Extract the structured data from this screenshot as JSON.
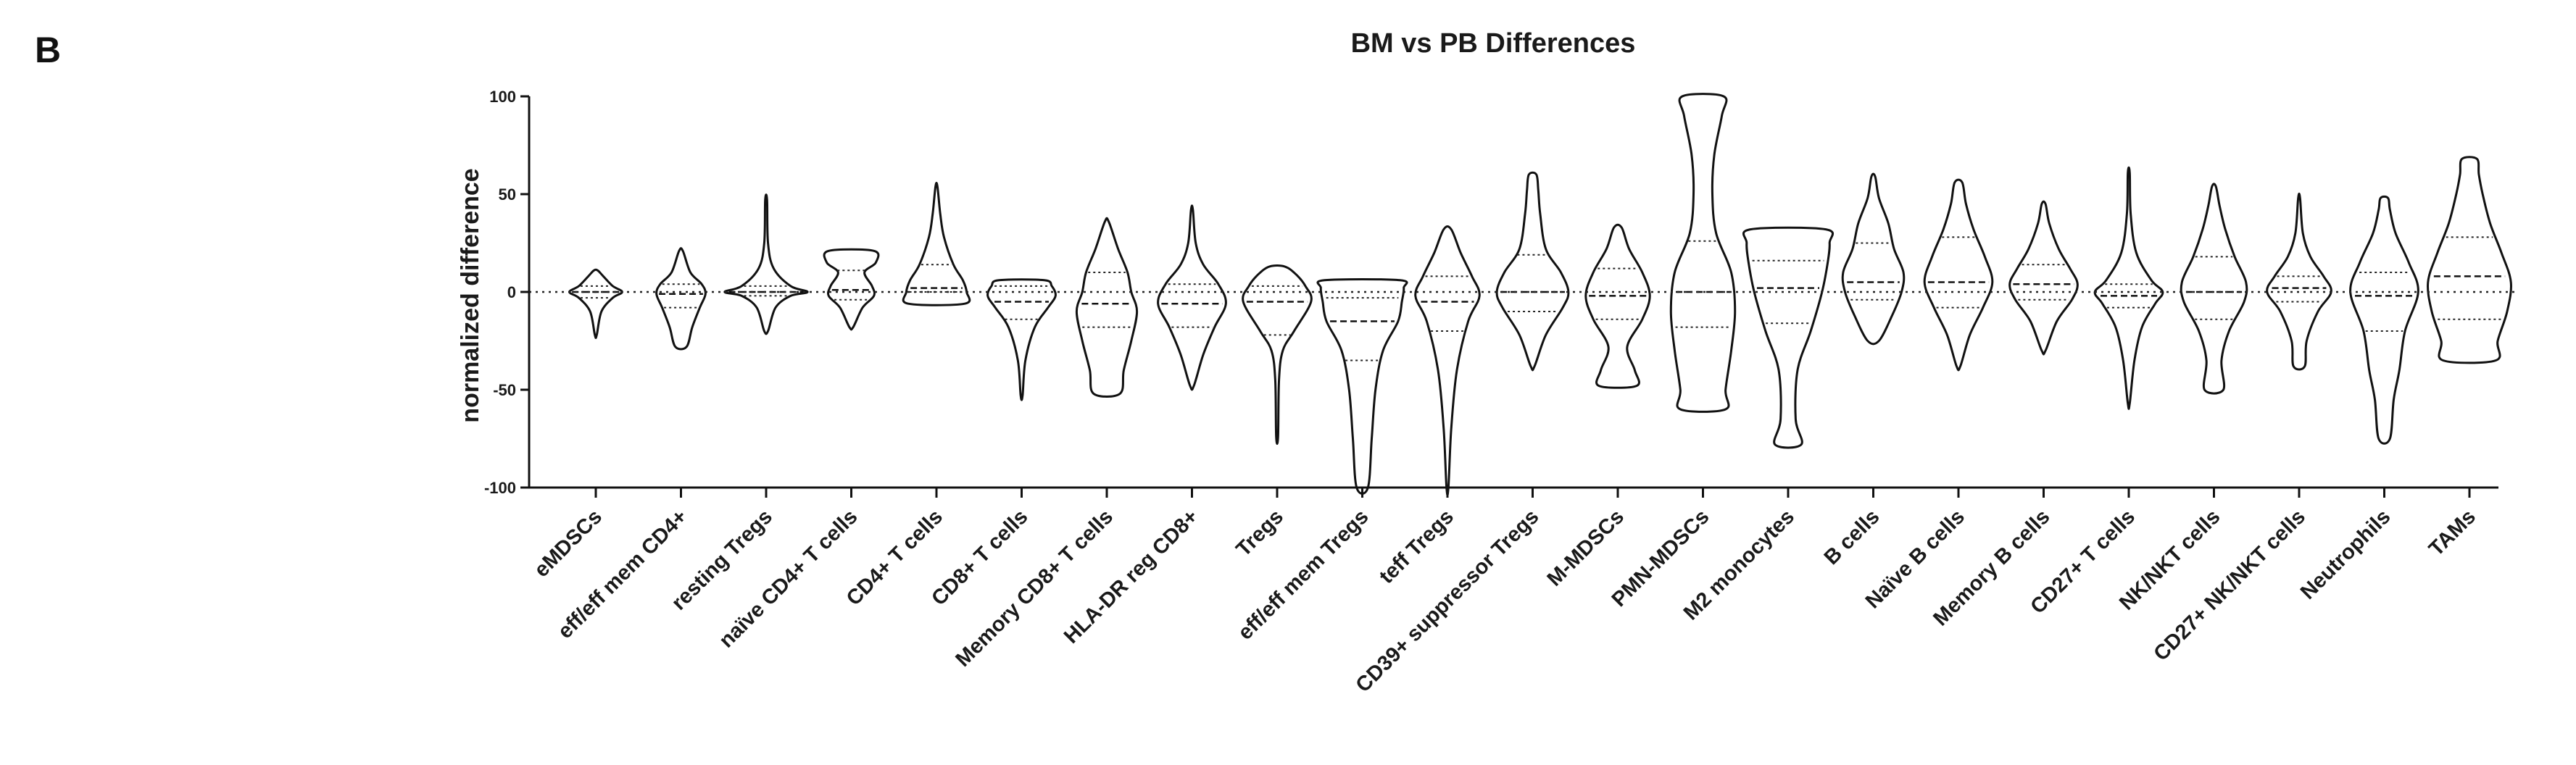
{
  "panel_label": "B",
  "chart_data": {
    "type": "violin",
    "title": "BM vs PB Differences",
    "xlabel": "",
    "ylabel": "normalized difference",
    "ylim": [
      -100,
      100
    ],
    "yticks": [
      100,
      50,
      0,
      -50,
      -100
    ],
    "reference_line": 0,
    "categories": [
      "eMDSCs",
      "eff/eff mem CD4+",
      "resting Tregs",
      "naïve CD4+ T cells",
      "CD4+ T cells",
      "CD8+ T cells",
      "Memory CD8+ T cells",
      "HLA-DR reg CD8+",
      "Tregs",
      "eff/eff mem Tregs",
      "teff Tregs",
      "CD39+ suppressor Tregs",
      "M-MDSCs",
      "PMN-MDSCs",
      "M2 monocytes",
      "B cells",
      "Naïve B cells",
      "Memory B cells",
      "CD27+ T cells",
      "NK/NKT cells",
      "CD27+ NK/NKT cells",
      "Neutrophils",
      "TAMs"
    ],
    "violins": [
      {
        "min": -22,
        "max": 11,
        "q1": -3,
        "median": 0,
        "q3": 3,
        "profile": [
          [
            -22,
            0.5
          ],
          [
            -10,
            3
          ],
          [
            -3,
            9
          ],
          [
            0,
            14
          ],
          [
            3,
            9
          ],
          [
            8,
            4
          ],
          [
            11,
            1
          ]
        ]
      },
      {
        "min": -28,
        "max": 21,
        "q1": -8,
        "median": -1,
        "q3": 4,
        "profile": [
          [
            -28,
            3
          ],
          [
            -18,
            6
          ],
          [
            -8,
            10
          ],
          [
            -1,
            13
          ],
          [
            4,
            11
          ],
          [
            10,
            5
          ],
          [
            21,
            1
          ]
        ]
      },
      {
        "min": -20,
        "max": 47,
        "q1": -2,
        "median": 0,
        "q3": 3,
        "profile": [
          [
            -20,
            1
          ],
          [
            -8,
            5
          ],
          [
            -2,
            13
          ],
          [
            0,
            22
          ],
          [
            3,
            13
          ],
          [
            12,
            4
          ],
          [
            25,
            1
          ],
          [
            47,
            0.5
          ]
        ]
      },
      {
        "min": -18,
        "max": 21,
        "q1": -4,
        "median": 1,
        "q3": 11,
        "profile": [
          [
            -18,
            1
          ],
          [
            -8,
            6
          ],
          [
            -2,
            12
          ],
          [
            3,
            11
          ],
          [
            10,
            7
          ],
          [
            15,
            13
          ],
          [
            21,
            12
          ]
        ]
      },
      {
        "min": -6,
        "max": 54,
        "q1": 0,
        "median": 2,
        "q3": 14,
        "profile": [
          [
            -6,
            15
          ],
          [
            0,
            16
          ],
          [
            6,
            14
          ],
          [
            14,
            9
          ],
          [
            28,
            4
          ],
          [
            40,
            2
          ],
          [
            54,
            0.5
          ]
        ]
      },
      {
        "min": -53,
        "max": 6,
        "q1": -14,
        "median": -5,
        "q3": 3,
        "profile": [
          [
            -53,
            0.5
          ],
          [
            -35,
            2
          ],
          [
            -18,
            7
          ],
          [
            -8,
            14
          ],
          [
            -2,
            18
          ],
          [
            3,
            16
          ],
          [
            6,
            12
          ]
        ]
      },
      {
        "min": -52,
        "max": 36,
        "q1": -18,
        "median": -6,
        "q3": 10,
        "profile": [
          [
            -52,
            7
          ],
          [
            -40,
            9
          ],
          [
            -25,
            13
          ],
          [
            -10,
            16
          ],
          [
            0,
            13
          ],
          [
            10,
            11
          ],
          [
            22,
            6
          ],
          [
            36,
            1
          ]
        ]
      },
      {
        "min": -48,
        "max": 42,
        "q1": -18,
        "median": -6,
        "q3": 4,
        "profile": [
          [
            -48,
            1
          ],
          [
            -32,
            6
          ],
          [
            -18,
            12
          ],
          [
            -6,
            18
          ],
          [
            4,
            14
          ],
          [
            14,
            6
          ],
          [
            25,
            2
          ],
          [
            42,
            0.5
          ]
        ]
      },
      {
        "min": -74,
        "max": 13,
        "q1": -22,
        "median": -5,
        "q3": 3,
        "profile": [
          [
            -74,
            0.5
          ],
          [
            -45,
            1
          ],
          [
            -30,
            3
          ],
          [
            -20,
            9
          ],
          [
            -5,
            18
          ],
          [
            3,
            15
          ],
          [
            9,
            10
          ],
          [
            13,
            4
          ]
        ]
      },
      {
        "min": -100,
        "max": 6,
        "q1": -35,
        "median": -15,
        "q3": -3,
        "profile": [
          [
            -100,
            3
          ],
          [
            -75,
            5
          ],
          [
            -50,
            7
          ],
          [
            -30,
            11
          ],
          [
            -15,
            19
          ],
          [
            -5,
            21
          ],
          [
            2,
            22
          ],
          [
            6,
            20
          ]
        ]
      },
      {
        "min": -100,
        "max": 32,
        "q1": -20,
        "median": -5,
        "q3": 8,
        "profile": [
          [
            -100,
            0.5
          ],
          [
            -70,
            2
          ],
          [
            -40,
            5
          ],
          [
            -15,
            11
          ],
          [
            -2,
            17
          ],
          [
            8,
            13
          ],
          [
            20,
            7
          ],
          [
            32,
            2
          ]
        ]
      },
      {
        "min": -38,
        "max": 60,
        "q1": -10,
        "median": 0,
        "q3": 19,
        "profile": [
          [
            -38,
            1
          ],
          [
            -22,
            7
          ],
          [
            -8,
            16
          ],
          [
            0,
            19
          ],
          [
            10,
            15
          ],
          [
            22,
            7
          ],
          [
            40,
            4
          ],
          [
            52,
            3
          ],
          [
            60,
            2
          ]
        ]
      },
      {
        "min": -48,
        "max": 33,
        "q1": -14,
        "median": -2,
        "q3": 12,
        "profile": [
          [
            -48,
            10
          ],
          [
            -40,
            9
          ],
          [
            -28,
            5
          ],
          [
            -14,
            13
          ],
          [
            -2,
            17
          ],
          [
            10,
            13
          ],
          [
            22,
            6
          ],
          [
            33,
            2
          ]
        ]
      },
      {
        "min": -60,
        "max": 100,
        "q1": -18,
        "median": 0,
        "q3": 26,
        "profile": [
          [
            -60,
            12
          ],
          [
            -50,
            12
          ],
          [
            -30,
            15
          ],
          [
            -10,
            17
          ],
          [
            10,
            15
          ],
          [
            30,
            7
          ],
          [
            50,
            5
          ],
          [
            70,
            6
          ],
          [
            90,
            10
          ],
          [
            100,
            11
          ]
        ]
      },
      {
        "min": -78,
        "max": 32,
        "q1": -16,
        "median": 2,
        "q3": 16,
        "profile": [
          [
            -78,
            7
          ],
          [
            -65,
            4
          ],
          [
            -40,
            5
          ],
          [
            -20,
            12
          ],
          [
            0,
            18
          ],
          [
            15,
            21
          ],
          [
            25,
            22
          ],
          [
            32,
            20
          ]
        ]
      },
      {
        "min": -25,
        "max": 59,
        "q1": -4,
        "median": 5,
        "q3": 25,
        "profile": [
          [
            -25,
            3
          ],
          [
            -12,
            10
          ],
          [
            0,
            15
          ],
          [
            10,
            16
          ],
          [
            22,
            11
          ],
          [
            35,
            8
          ],
          [
            48,
            3
          ],
          [
            59,
            1
          ]
        ]
      },
      {
        "min": -38,
        "max": 56,
        "q1": -8,
        "median": 5,
        "q3": 28,
        "profile": [
          [
            -38,
            1
          ],
          [
            -22,
            6
          ],
          [
            -8,
            13
          ],
          [
            5,
            18
          ],
          [
            18,
            14
          ],
          [
            32,
            8
          ],
          [
            45,
            4
          ],
          [
            56,
            2
          ]
        ]
      },
      {
        "min": -30,
        "max": 45,
        "q1": -4,
        "median": 4,
        "q3": 14,
        "profile": [
          [
            -30,
            1
          ],
          [
            -15,
            7
          ],
          [
            -4,
            15
          ],
          [
            4,
            18
          ],
          [
            12,
            14
          ],
          [
            22,
            8
          ],
          [
            35,
            3
          ],
          [
            45,
            1
          ]
        ]
      },
      {
        "min": -57,
        "max": 61,
        "q1": -8,
        "median": -2,
        "q3": 4,
        "profile": [
          [
            -57,
            0.5
          ],
          [
            -35,
            3
          ],
          [
            -18,
            7
          ],
          [
            -6,
            14
          ],
          [
            0,
            18
          ],
          [
            6,
            12
          ],
          [
            20,
            4
          ],
          [
            40,
            1
          ],
          [
            61,
            0.5
          ]
        ]
      },
      {
        "min": -50,
        "max": 54,
        "q1": -14,
        "median": 0,
        "q3": 18,
        "profile": [
          [
            -50,
            5
          ],
          [
            -35,
            4
          ],
          [
            -20,
            8
          ],
          [
            -5,
            16
          ],
          [
            5,
            17
          ],
          [
            18,
            11
          ],
          [
            32,
            6
          ],
          [
            44,
            3
          ],
          [
            54,
            1
          ]
        ]
      },
      {
        "min": -38,
        "max": 48,
        "q1": -5,
        "median": 2,
        "q3": 8,
        "profile": [
          [
            -38,
            3
          ],
          [
            -25,
            4
          ],
          [
            -10,
            10
          ],
          [
            0,
            17
          ],
          [
            8,
            13
          ],
          [
            18,
            6
          ],
          [
            30,
            2
          ],
          [
            48,
            0.5
          ]
        ]
      },
      {
        "min": -75,
        "max": 48,
        "q1": -20,
        "median": -2,
        "q3": 10,
        "profile": [
          [
            -75,
            3
          ],
          [
            -55,
            5
          ],
          [
            -40,
            8
          ],
          [
            -20,
            11
          ],
          [
            0,
            18
          ],
          [
            15,
            13
          ],
          [
            30,
            6
          ],
          [
            42,
            3
          ],
          [
            48,
            2
          ]
        ]
      },
      {
        "min": -35,
        "max": 68,
        "q1": -14,
        "median": 8,
        "q3": 28,
        "profile": [
          [
            -35,
            14
          ],
          [
            -25,
            15
          ],
          [
            -10,
            20
          ],
          [
            5,
            22
          ],
          [
            20,
            17
          ],
          [
            35,
            11
          ],
          [
            50,
            7
          ],
          [
            60,
            5
          ],
          [
            68,
            4
          ]
        ]
      }
    ]
  }
}
